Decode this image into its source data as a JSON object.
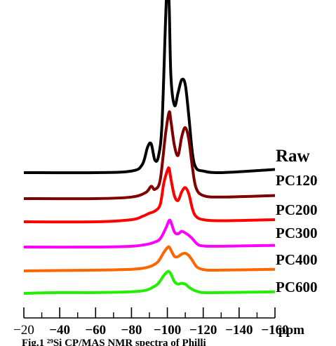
{
  "chart_data": {
    "type": "line",
    "title": "",
    "xlabel": "",
    "ylabel": "",
    "x_unit": "ppm",
    "xlim": [
      -20,
      -160
    ],
    "x_ticks": [
      -20,
      -40,
      -60,
      -80,
      -100,
      -120,
      -140,
      -160
    ],
    "x_tick_labels": [
      "−20",
      "−40",
      "−60",
      "−80",
      "−100",
      "−120",
      "−140",
      "−160"
    ],
    "grid": false,
    "legend": "labels at right end of each trace",
    "series": [
      {
        "name": "Raw",
        "color": "#000000",
        "x": [
          -20,
          -60,
          -80,
          -86,
          -89,
          -91,
          -93,
          -95,
          -97,
          -99,
          -100,
          -101,
          -102,
          -104,
          -106,
          -108,
          -110,
          -112,
          -114,
          -116,
          -120,
          -130,
          -160
        ],
        "y": [
          0.0,
          0.0,
          0.01,
          0.05,
          0.16,
          0.18,
          0.08,
          0.1,
          0.3,
          0.95,
          1.2,
          1.05,
          0.6,
          0.42,
          0.5,
          0.58,
          0.55,
          0.35,
          0.12,
          0.03,
          0.01,
          0.0,
          0.02
        ]
      },
      {
        "name": "PC120",
        "color": "#800000",
        "x": [
          -20,
          -60,
          -80,
          -88,
          -91,
          -93,
          -96,
          -99,
          -101,
          -102,
          -104,
          -106,
          -108,
          -110,
          -112,
          -114,
          -116,
          -120,
          -130,
          -160
        ],
        "y": [
          0.0,
          0.0,
          0.01,
          0.04,
          0.08,
          0.06,
          0.12,
          0.42,
          0.56,
          0.5,
          0.34,
          0.28,
          0.4,
          0.46,
          0.38,
          0.2,
          0.07,
          0.02,
          0.01,
          0.02
        ]
      },
      {
        "name": "PC200",
        "color": "#ff0000",
        "x": [
          -20,
          -60,
          -80,
          -86,
          -90,
          -93,
          -96,
          -98,
          -100,
          -101,
          -102,
          -104,
          -106,
          -108,
          -110,
          -112,
          -114,
          -116,
          -120,
          -130,
          -160
        ],
        "y": [
          0.0,
          0.0,
          0.02,
          0.05,
          0.08,
          0.1,
          0.16,
          0.36,
          0.48,
          0.5,
          0.4,
          0.24,
          0.2,
          0.28,
          0.32,
          0.26,
          0.12,
          0.05,
          0.02,
          0.01,
          0.02
        ]
      },
      {
        "name": "PC300",
        "color": "#ff00ff",
        "x": [
          -20,
          -60,
          -80,
          -88,
          -93,
          -96,
          -99,
          -101,
          -102,
          -104,
          -106,
          -108,
          -110,
          -112,
          -114,
          -116,
          -118,
          -122,
          -130,
          -160
        ],
        "y": [
          0.0,
          0.0,
          0.01,
          0.03,
          0.06,
          0.1,
          0.22,
          0.32,
          0.3,
          0.18,
          0.16,
          0.19,
          0.17,
          0.14,
          0.1,
          0.05,
          0.02,
          0.01,
          0.01,
          0.02
        ]
      },
      {
        "name": "PC400",
        "color": "#ff6600",
        "x": [
          -20,
          -60,
          -80,
          -88,
          -92,
          -95,
          -98,
          -100,
          -101,
          -102,
          -104,
          -106,
          -108,
          -110,
          -112,
          -114,
          -116,
          -118,
          -122,
          -130,
          -160
        ],
        "y": [
          0.0,
          0.01,
          0.02,
          0.04,
          0.07,
          0.12,
          0.23,
          0.29,
          0.3,
          0.26,
          0.18,
          0.18,
          0.21,
          0.22,
          0.19,
          0.13,
          0.06,
          0.03,
          0.01,
          0.01,
          0.02
        ]
      },
      {
        "name": "PC600",
        "color": "#22ee00",
        "x": [
          -20,
          -40,
          -60,
          -80,
          -88,
          -92,
          -95,
          -98,
          -100,
          -101,
          -102,
          -104,
          -106,
          -108,
          -110,
          -112,
          -114,
          -116,
          -120,
          -130,
          -160
        ],
        "y": [
          0.0,
          0.01,
          0.01,
          0.02,
          0.04,
          0.08,
          0.13,
          0.23,
          0.28,
          0.28,
          0.25,
          0.15,
          0.12,
          0.13,
          0.12,
          0.08,
          0.05,
          0.03,
          0.01,
          0.01,
          0.02
        ]
      }
    ]
  },
  "caption": "Fig.1 ²⁹Si CP/MAS NMR spectra of Philli"
}
